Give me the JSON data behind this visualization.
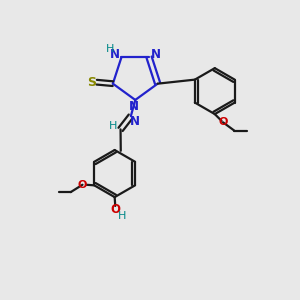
{
  "bg_color": "#e8e8e8",
  "bond_color": "#1a1a1a",
  "n_color": "#2222cc",
  "s_color": "#888800",
  "o_color": "#cc0000",
  "h_color": "#008888",
  "figsize": [
    3.0,
    3.0
  ],
  "dpi": 100,
  "xlim": [
    0,
    10
  ],
  "ylim": [
    0,
    10
  ]
}
